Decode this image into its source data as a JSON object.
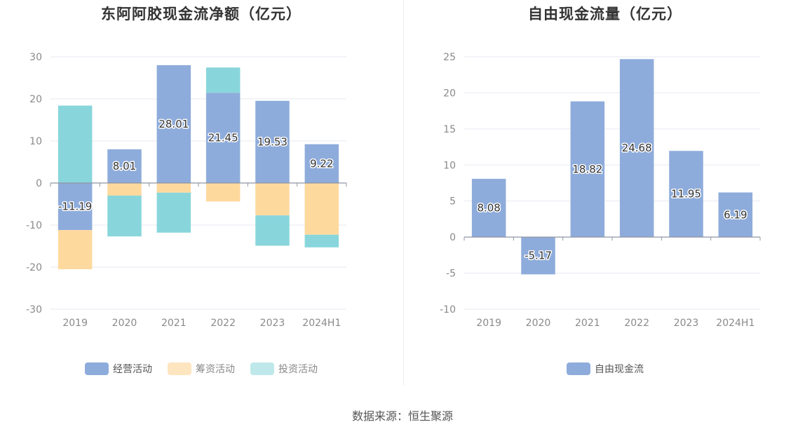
{
  "source": "数据来源：恒生聚源",
  "chart_data": [
    {
      "type": "bar",
      "stacked": true,
      "title": "东阿阿胶现金流净额（亿元）",
      "categories": [
        "2019",
        "2020",
        "2021",
        "2022",
        "2023",
        "2024H1"
      ],
      "ylim": [
        -30,
        30
      ],
      "yticks": [
        30,
        20,
        10,
        0,
        -10,
        -20,
        -30
      ],
      "grid": true,
      "legend_position": "bottom",
      "series": [
        {
          "name": "经营活动",
          "color": "#8eacdb",
          "values": [
            -11.19,
            8.01,
            28.01,
            21.45,
            19.53,
            9.22
          ]
        },
        {
          "name": "筹资活动",
          "color": "#fed99e",
          "values": [
            -9.3,
            -3.0,
            -2.3,
            -4.4,
            -7.7,
            -12.3
          ]
        },
        {
          "name": "投资活动",
          "color": "#88d6db",
          "values": [
            18.4,
            -9.7,
            -9.5,
            6.0,
            -7.2,
            -3.0
          ]
        }
      ],
      "data_labels": [
        -11.19,
        8.01,
        28.01,
        21.45,
        19.53,
        9.22
      ]
    },
    {
      "type": "bar",
      "title": "自由现金流量（亿元）",
      "categories": [
        "2019",
        "2020",
        "2021",
        "2022",
        "2023",
        "2024H1"
      ],
      "ylim": [
        -10,
        25
      ],
      "yticks": [
        25,
        20,
        15,
        10,
        5,
        0,
        -5,
        -10
      ],
      "grid": true,
      "legend_position": "bottom",
      "series": [
        {
          "name": "自由现金流",
          "color": "#8eacdb",
          "values": [
            8.08,
            -5.17,
            18.82,
            24.68,
            11.95,
            6.19
          ]
        }
      ],
      "data_labels": [
        8.08,
        -5.17,
        18.82,
        24.68,
        11.95,
        6.19
      ]
    }
  ]
}
